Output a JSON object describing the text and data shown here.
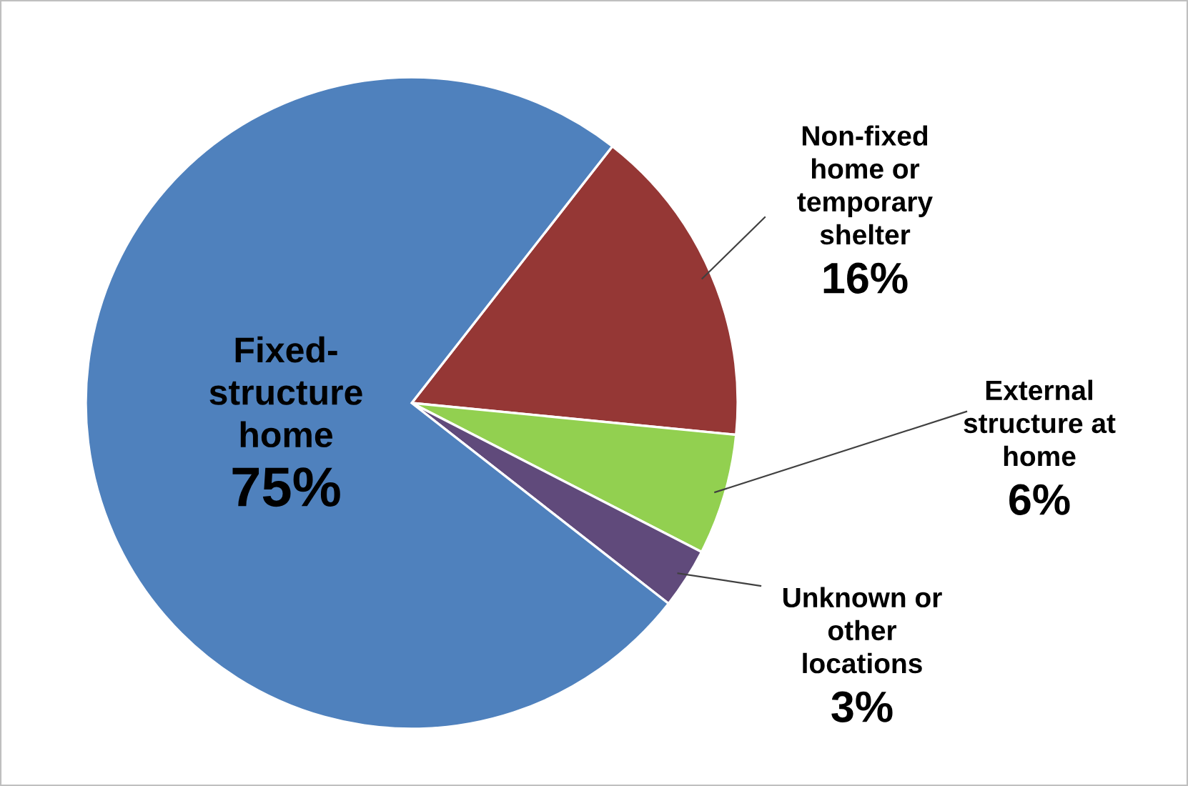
{
  "chart_data": {
    "type": "pie",
    "categories": [
      "Non-fixed\nhome or\ntemporary\nshelter",
      "External\nstructure at\nhome",
      "Unknown or\nother\nlocations",
      "Fixed-\nstructure\nhome"
    ],
    "values": [
      16,
      6,
      3,
      75
    ],
    "value_labels": [
      "16%",
      "6%",
      "3%",
      "75%"
    ],
    "colors": [
      "#953735",
      "#92d050",
      "#604a7b",
      "#4f81bd"
    ]
  }
}
